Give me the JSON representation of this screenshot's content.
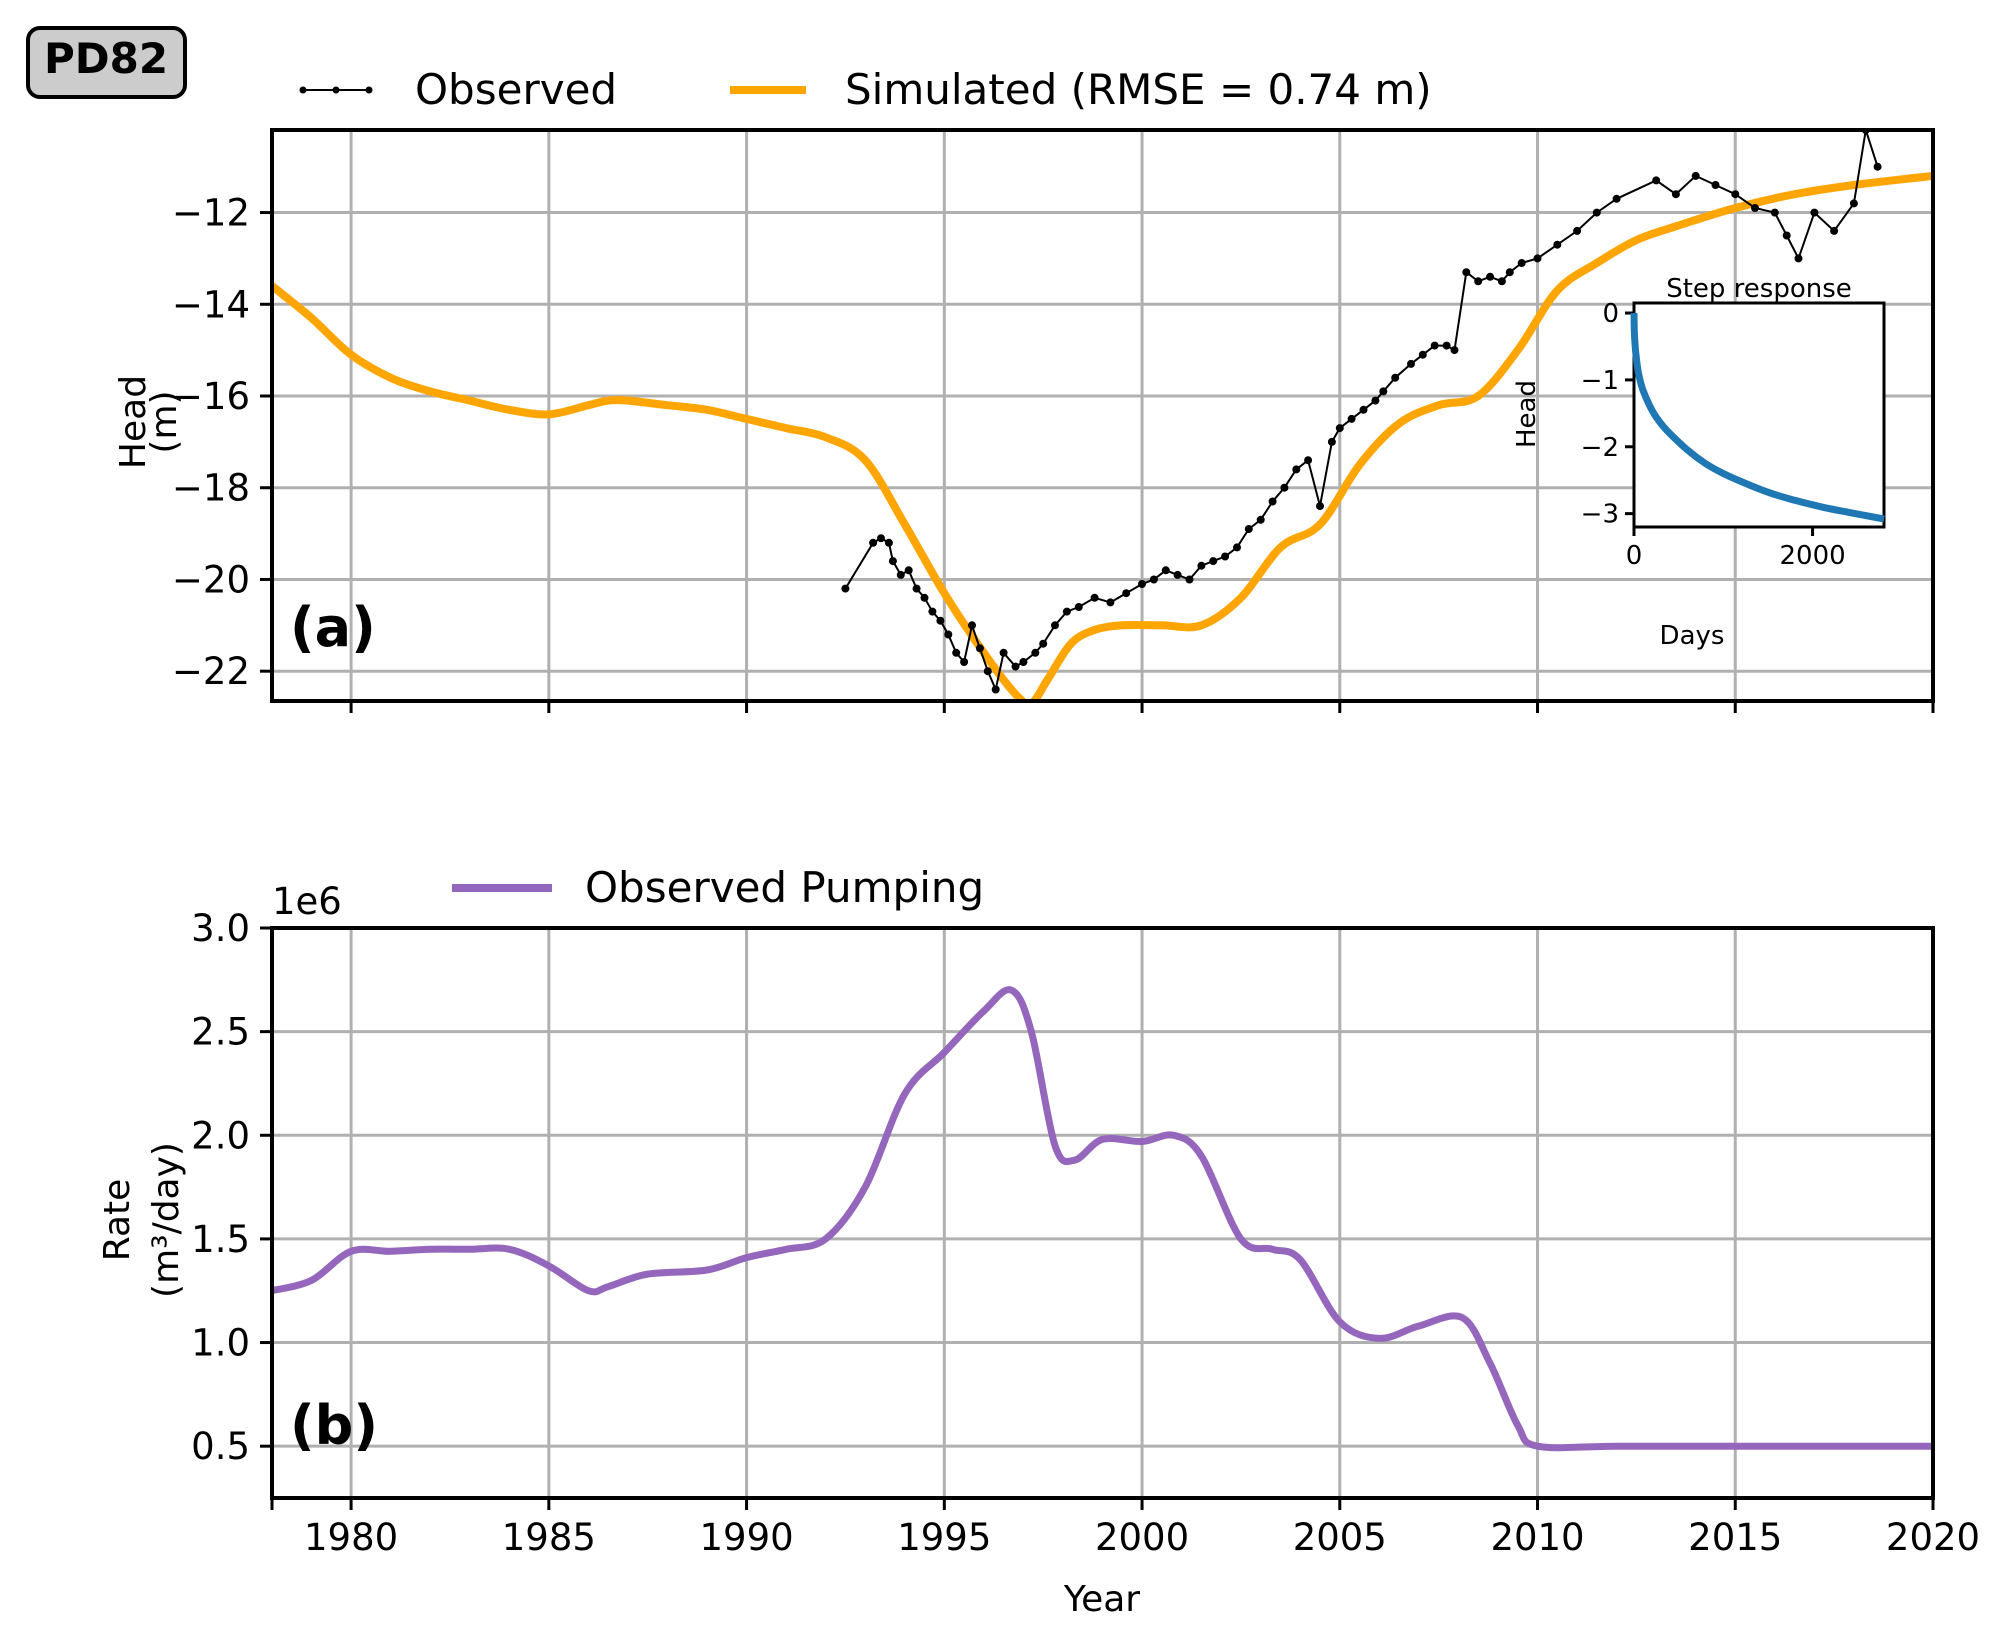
{
  "well_badge": "PD82",
  "chart_data": [
    {
      "id": "a",
      "type": "line",
      "panel_label": "(a)",
      "ylabel": [
        "Head",
        "(m)"
      ],
      "xlim": [
        1978,
        2020
      ],
      "ylim": [
        -22.65,
        -10.2
      ],
      "yticks": [
        -22,
        -20,
        -18,
        -16,
        -14,
        -12
      ],
      "ytick_labels": [
        "−22",
        "−20",
        "−18",
        "−16",
        "−14",
        "−12"
      ],
      "xticks": [
        1980,
        1985,
        1990,
        1995,
        2000,
        2005,
        2010,
        2015,
        2020
      ],
      "grid": true,
      "legend_position": "top, outside the axes",
      "series": [
        {
          "name": "Observed",
          "style": "line-with-dots",
          "color": "#000000",
          "x": [
            1992.5,
            1993.2,
            1993.4,
            1993.6,
            1993.7,
            1993.9,
            1994.1,
            1994.3,
            1994.5,
            1994.7,
            1994.9,
            1995.1,
            1995.3,
            1995.5,
            1995.7,
            1995.9,
            1996.1,
            1996.3,
            1996.5,
            1996.8,
            1997.0,
            1997.3,
            1997.5,
            1997.8,
            1998.1,
            1998.4,
            1998.8,
            1999.2,
            1999.6,
            2000.0,
            2000.3,
            2000.6,
            2000.9,
            2001.2,
            2001.5,
            2001.8,
            2002.1,
            2002.4,
            2002.7,
            2003.0,
            2003.3,
            2003.6,
            2003.9,
            2004.2,
            2004.5,
            2004.8,
            2005.0,
            2005.3,
            2005.6,
            2005.9,
            2006.1,
            2006.4,
            2006.8,
            2007.1,
            2007.4,
            2007.7,
            2007.9,
            2008.2,
            2008.5,
            2008.8,
            2009.1,
            2009.3,
            2009.6,
            2010.0,
            2010.5,
            2011.0,
            2011.5,
            2012.0,
            2013.0,
            2013.5,
            2014.0,
            2014.5,
            2015.0,
            2015.5,
            2016.0,
            2016.3,
            2016.6,
            2017.0,
            2017.5,
            2018.0,
            2018.3,
            2018.6
          ],
          "y": [
            -20.2,
            -19.2,
            -19.1,
            -19.2,
            -19.6,
            -19.9,
            -19.8,
            -20.2,
            -20.4,
            -20.7,
            -20.9,
            -21.2,
            -21.6,
            -21.8,
            -21.0,
            -21.5,
            -22.0,
            -22.4,
            -21.6,
            -21.9,
            -21.8,
            -21.6,
            -21.4,
            -21.0,
            -20.7,
            -20.6,
            -20.4,
            -20.5,
            -20.3,
            -20.1,
            -20.0,
            -19.8,
            -19.9,
            -20.0,
            -19.7,
            -19.6,
            -19.5,
            -19.3,
            -18.9,
            -18.7,
            -18.3,
            -18.0,
            -17.6,
            -17.4,
            -18.4,
            -17.0,
            -16.7,
            -16.5,
            -16.3,
            -16.1,
            -15.9,
            -15.6,
            -15.3,
            -15.1,
            -14.9,
            -14.9,
            -15.0,
            -13.3,
            -13.5,
            -13.4,
            -13.5,
            -13.3,
            -13.1,
            -13.0,
            -12.7,
            -12.4,
            -12.0,
            -11.7,
            -11.3,
            -11.6,
            -11.2,
            -11.4,
            -11.6,
            -11.9,
            -12.0,
            -12.5,
            -13.0,
            -12.0,
            -12.4,
            -11.8,
            -10.2,
            -11.0
          ]
        },
        {
          "name": "Simulated (RMSE = 0.74 m)",
          "style": "line",
          "color": "#ffa500",
          "x": [
            1978,
            1979,
            1980,
            1981,
            1982,
            1983,
            1984,
            1985,
            1986,
            1986.5,
            1987,
            1988,
            1989,
            1990,
            1991,
            1992,
            1993,
            1994,
            1995,
            1996,
            1996.8,
            1997.2,
            1997.6,
            1998.2,
            1998.8,
            1999.5,
            2000.5,
            2001.5,
            2002.5,
            2003.5,
            2004.5,
            2005.5,
            2006.5,
            2007.5,
            2008.5,
            2009.5,
            2010.5,
            2011.5,
            2012.5,
            2013.5,
            2015,
            2016.5,
            2018,
            2020
          ],
          "y": [
            -13.6,
            -14.3,
            -15.1,
            -15.6,
            -15.9,
            -16.1,
            -16.3,
            -16.4,
            -16.2,
            -16.1,
            -16.1,
            -16.2,
            -16.3,
            -16.5,
            -16.7,
            -16.9,
            -17.4,
            -18.8,
            -20.3,
            -21.6,
            -22.5,
            -22.7,
            -22.2,
            -21.4,
            -21.1,
            -21.0,
            -21.0,
            -21.0,
            -20.4,
            -19.3,
            -18.8,
            -17.5,
            -16.6,
            -16.2,
            -16.0,
            -15.0,
            -13.7,
            -13.1,
            -12.6,
            -12.3,
            -11.9,
            -11.6,
            -11.4,
            -11.2
          ]
        }
      ],
      "inset": {
        "type": "line",
        "title": "Step response",
        "xlabel": "Days",
        "ylabel": "Head",
        "xlim": [
          0,
          2800
        ],
        "ylim": [
          -3.2,
          0.15
        ],
        "xticks": [
          0,
          2000
        ],
        "yticks": [
          0,
          -1,
          -2,
          -3
        ],
        "ytick_labels": [
          "0",
          "−1",
          "−2",
          "−3"
        ],
        "color": "#1f77b4",
        "x": [
          0,
          5,
          20,
          50,
          100,
          200,
          300,
          400,
          600,
          800,
          1000,
          1200,
          1500,
          1800,
          2100,
          2400,
          2800
        ],
        "y": [
          0,
          -0.3,
          -0.6,
          -0.9,
          -1.15,
          -1.45,
          -1.65,
          -1.8,
          -2.05,
          -2.25,
          -2.4,
          -2.52,
          -2.68,
          -2.8,
          -2.9,
          -2.98,
          -3.08
        ]
      }
    },
    {
      "id": "b",
      "type": "line",
      "panel_label": "(b)",
      "ylabel": [
        "Rate",
        "(m³/day)"
      ],
      "scale_label": "1e6",
      "xlabel": "Year",
      "xlim": [
        1978,
        2020
      ],
      "ylim": [
        0.25,
        3.0
      ],
      "yticks": [
        0.5,
        1.0,
        1.5,
        2.0,
        2.5,
        3.0
      ],
      "ytick_labels": [
        "0.5",
        "1.0",
        "1.5",
        "2.0",
        "2.5",
        "3.0"
      ],
      "xticks": [
        1980,
        1985,
        1990,
        1995,
        2000,
        2005,
        2010,
        2015,
        2020
      ],
      "xtick_labels": [
        "1980",
        "1985",
        "1990",
        "1995",
        "2000",
        "2005",
        "2010",
        "2015",
        "2020"
      ],
      "grid": true,
      "legend_position": "top, outside the axes",
      "series": [
        {
          "name": "Observed Pumping",
          "color": "#9467bd",
          "x": [
            1978,
            1979,
            1980,
            1981,
            1982,
            1983,
            1984,
            1985,
            1986,
            1986.5,
            1987.5,
            1989,
            1990,
            1991,
            1992,
            1993,
            1994,
            1995,
            1996,
            1996.7,
            1997.2,
            1997.8,
            1998.3,
            1999,
            2000,
            2000.8,
            2001.5,
            2002.5,
            2003.3,
            2004,
            2005,
            2006,
            2007,
            2008.1,
            2008.8,
            2009.5,
            2010,
            2012,
            2015,
            2020
          ],
          "y": [
            1.25,
            1.3,
            1.44,
            1.44,
            1.45,
            1.45,
            1.45,
            1.37,
            1.25,
            1.27,
            1.33,
            1.35,
            1.41,
            1.45,
            1.5,
            1.75,
            2.2,
            2.4,
            2.6,
            2.7,
            2.5,
            1.95,
            1.88,
            1.98,
            1.97,
            2.0,
            1.9,
            1.5,
            1.45,
            1.4,
            1.1,
            1.02,
            1.08,
            1.12,
            0.9,
            0.6,
            0.5,
            0.5,
            0.5,
            0.5
          ]
        }
      ]
    }
  ]
}
